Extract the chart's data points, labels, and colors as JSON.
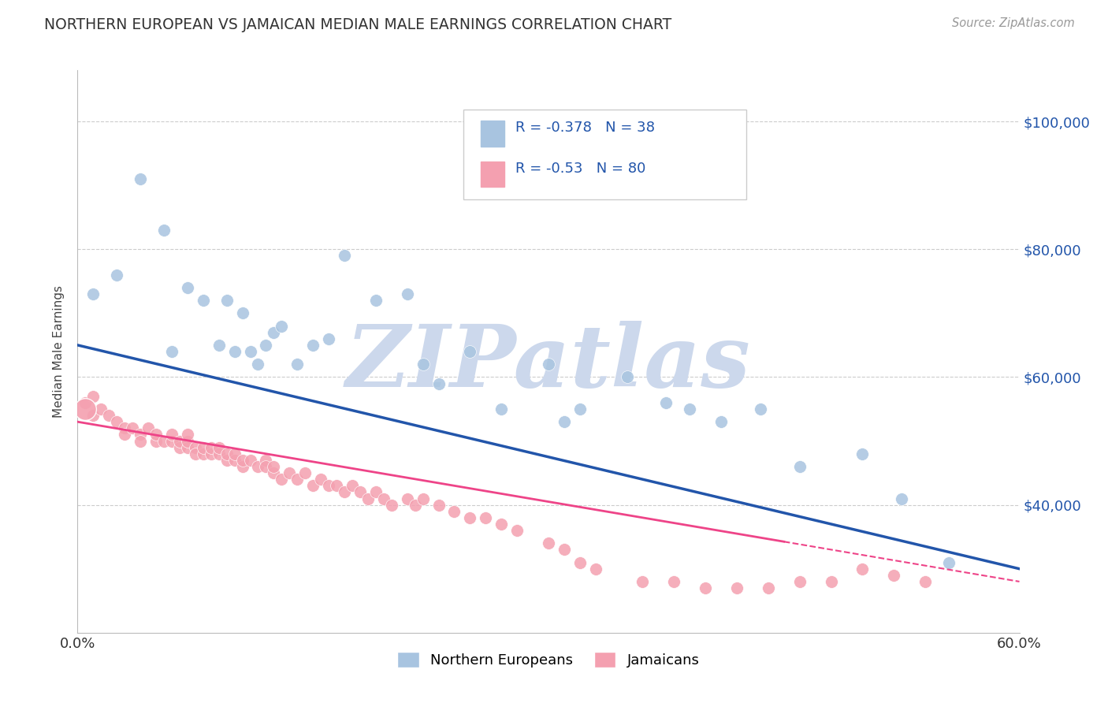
{
  "title": "NORTHERN EUROPEAN VS JAMAICAN MEDIAN MALE EARNINGS CORRELATION CHART",
  "source": "Source: ZipAtlas.com",
  "ylabel": "Median Male Earnings",
  "y_ticks_right": [
    40000,
    60000,
    80000,
    100000
  ],
  "y_tick_labels_right": [
    "$40,000",
    "$60,000",
    "$80,000",
    "$100,000"
  ],
  "xlim": [
    0.0,
    0.6
  ],
  "ylim": [
    20000,
    108000
  ],
  "blue_R": -0.378,
  "blue_N": 38,
  "pink_R": -0.53,
  "pink_N": 80,
  "blue_color": "#a8c4e0",
  "pink_color": "#f4a0b0",
  "blue_line_color": "#2255aa",
  "pink_line_color": "#ee4488",
  "grid_color": "#cccccc",
  "watermark_text": "ZIPatlas",
  "legend_label_blue": "Northern Europeans",
  "legend_label_pink": "Jamaicans",
  "blue_scatter_x": [
    0.01,
    0.025,
    0.04,
    0.055,
    0.06,
    0.07,
    0.08,
    0.09,
    0.095,
    0.1,
    0.105,
    0.11,
    0.115,
    0.12,
    0.125,
    0.13,
    0.14,
    0.15,
    0.16,
    0.17,
    0.19,
    0.21,
    0.22,
    0.23,
    0.25,
    0.27,
    0.3,
    0.31,
    0.32,
    0.35,
    0.375,
    0.39,
    0.41,
    0.435,
    0.46,
    0.5,
    0.525,
    0.555
  ],
  "blue_scatter_y": [
    73000,
    76000,
    91000,
    83000,
    64000,
    74000,
    72000,
    65000,
    72000,
    64000,
    70000,
    64000,
    62000,
    65000,
    67000,
    68000,
    62000,
    65000,
    66000,
    79000,
    72000,
    73000,
    62000,
    59000,
    64000,
    55000,
    62000,
    53000,
    55000,
    60000,
    56000,
    55000,
    53000,
    55000,
    46000,
    48000,
    41000,
    31000
  ],
  "pink_scatter_x": [
    0.005,
    0.01,
    0.01,
    0.015,
    0.02,
    0.025,
    0.03,
    0.03,
    0.035,
    0.04,
    0.04,
    0.045,
    0.05,
    0.05,
    0.055,
    0.06,
    0.06,
    0.065,
    0.065,
    0.07,
    0.07,
    0.07,
    0.075,
    0.075,
    0.08,
    0.08,
    0.085,
    0.085,
    0.09,
    0.09,
    0.095,
    0.095,
    0.1,
    0.1,
    0.105,
    0.105,
    0.11,
    0.115,
    0.12,
    0.12,
    0.125,
    0.125,
    0.13,
    0.135,
    0.14,
    0.145,
    0.15,
    0.155,
    0.16,
    0.165,
    0.17,
    0.175,
    0.18,
    0.185,
    0.19,
    0.195,
    0.2,
    0.21,
    0.215,
    0.22,
    0.23,
    0.24,
    0.25,
    0.26,
    0.27,
    0.28,
    0.3,
    0.31,
    0.32,
    0.33,
    0.36,
    0.38,
    0.4,
    0.42,
    0.44,
    0.46,
    0.48,
    0.5,
    0.52,
    0.54
  ],
  "pink_scatter_y": [
    56000,
    57000,
    54000,
    55000,
    54000,
    53000,
    52000,
    51000,
    52000,
    51000,
    50000,
    52000,
    50000,
    51000,
    50000,
    50000,
    51000,
    49000,
    50000,
    49000,
    50000,
    51000,
    49000,
    48000,
    48000,
    49000,
    48000,
    49000,
    48000,
    49000,
    47000,
    48000,
    47000,
    48000,
    46000,
    47000,
    47000,
    46000,
    47000,
    46000,
    45000,
    46000,
    44000,
    45000,
    44000,
    45000,
    43000,
    44000,
    43000,
    43000,
    42000,
    43000,
    42000,
    41000,
    42000,
    41000,
    40000,
    41000,
    40000,
    41000,
    40000,
    39000,
    38000,
    38000,
    37000,
    36000,
    34000,
    33000,
    31000,
    30000,
    28000,
    28000,
    27000,
    27000,
    27000,
    28000,
    28000,
    30000,
    29000,
    28000
  ]
}
